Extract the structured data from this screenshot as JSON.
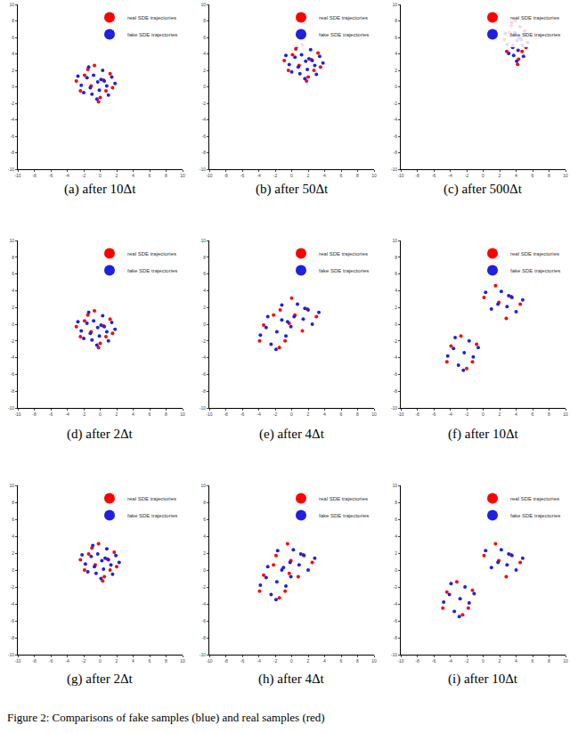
{
  "caption": "Figure 2: Comparisons of fake samples (blue) and real samples (red)",
  "chart_data": [
    {
      "type": "scatter",
      "title": "(a) after 10Δt",
      "xlim": [
        -10,
        10
      ],
      "ylim": [
        -10,
        10
      ],
      "xticks": [
        -10,
        -8,
        -6,
        -4,
        -2,
        0,
        2,
        4,
        6,
        8,
        10
      ],
      "yticks": [
        -10,
        -8,
        -6,
        -4,
        -2,
        0,
        2,
        4,
        6,
        8,
        10
      ],
      "legend": "top right",
      "series": [
        {
          "name": "real SDE trajectories",
          "color": "#ff0000",
          "x": [
            0.0,
            -1.9,
            1.2,
            -0.7,
            0.7,
            -2.4,
            0.4,
            -1.1,
            1.5,
            -1.5,
            -0.2,
            -2.9
          ],
          "y": [
            -1.3,
            1.4,
            1.6,
            2.6,
            -0.5,
            -0.5,
            0.8,
            0.1,
            -0.1,
            2.1,
            -1.8,
            0.7
          ]
        },
        {
          "name": "fake SDE trajectories",
          "color": "#2020e0",
          "x": [
            -0.3,
            -1.6,
            0.8,
            -1.0,
            0.3,
            -2.3,
            1.4,
            -0.4,
            -1.4,
            1.0,
            -2.0,
            0.1,
            -0.8,
            0.5,
            -1.2,
            -0.1,
            -2.7,
            1.8
          ],
          "y": [
            0.6,
            1.1,
            0.1,
            -0.9,
            2.0,
            0.2,
            1.2,
            -1.5,
            2.4,
            -1.0,
            -0.7,
            0.9,
            1.4,
            0.7,
            -0.1,
            -0.4,
            1.3,
            0.4
          ]
        }
      ]
    },
    {
      "type": "scatter",
      "title": "(b) after 50Δt",
      "xlim": [
        -10,
        10
      ],
      "ylim": [
        -10,
        10
      ],
      "xticks": [
        -10,
        -8,
        -6,
        -4,
        -2,
        0,
        2,
        4,
        6,
        8,
        10
      ],
      "yticks": [
        -10,
        -8,
        -6,
        -4,
        -2,
        0,
        2,
        4,
        6,
        8,
        10
      ],
      "legend": "top right",
      "series": [
        {
          "name": "real SDE trajectories",
          "color": "#ff0000",
          "x": [
            2.0,
            0.1,
            3.2,
            1.3,
            2.7,
            -0.4,
            2.4,
            0.9,
            3.5,
            0.5,
            1.8,
            -0.9
          ],
          "y": [
            1.2,
            3.9,
            4.1,
            5.1,
            2.0,
            2.0,
            3.3,
            2.6,
            2.4,
            4.6,
            0.7,
            3.2
          ]
        },
        {
          "name": "fake SDE trajectories",
          "color": "#2020e0",
          "x": [
            1.7,
            0.4,
            2.8,
            1.0,
            2.3,
            -0.3,
            3.4,
            1.6,
            0.6,
            3.0,
            0.0,
            2.1,
            1.2,
            2.5,
            0.8,
            1.9,
            -0.7,
            3.8
          ],
          "y": [
            3.1,
            3.6,
            2.6,
            1.6,
            4.5,
            2.7,
            3.7,
            1.0,
            4.9,
            1.5,
            1.8,
            3.4,
            3.9,
            3.2,
            2.4,
            2.1,
            3.8,
            2.9
          ]
        }
      ]
    },
    {
      "type": "scatter",
      "title": "(c) after 500Δt",
      "xlim": [
        -10,
        10
      ],
      "ylim": [
        -10,
        10
      ],
      "xticks": [
        -10,
        -8,
        -6,
        -4,
        -2,
        0,
        2,
        4,
        6,
        8,
        10
      ],
      "yticks": [
        -10,
        -8,
        -6,
        -4,
        -2,
        0,
        2,
        4,
        6,
        8,
        10
      ],
      "legend": "top right",
      "series": [
        {
          "name": "real SDE trajectories",
          "color": "#ff0000",
          "x": [
            4.3,
            3.16,
            5.02,
            3.88,
            4.72,
            2.86,
            4.54,
            3.64,
            5.2,
            3.4,
            4.18,
            2.56
          ],
          "y": [
            3.34,
            6.58,
            6.82,
            8.02,
            4.3,
            4.3,
            5.86,
            5.02,
            4.78,
            7.42,
            2.74,
            5.74
          ]
        },
        {
          "name": "fake SDE trajectories",
          "color": "#2020e0",
          "x": [
            4.12,
            3.34,
            4.78,
            3.7,
            4.48,
            2.92,
            5.14,
            4.06,
            3.46,
            4.9,
            3.1,
            4.36,
            3.82,
            4.6,
            3.58,
            4.24,
            2.68,
            5.38
          ],
          "y": [
            5.62,
            6.22,
            5.02,
            3.82,
            7.3,
            5.14,
            6.34,
            3.1,
            7.78,
            3.7,
            4.06,
            5.98,
            6.58,
            5.74,
            4.78,
            4.42,
            6.46,
            5.38
          ]
        }
      ]
    },
    {
      "type": "scatter",
      "title": "(d) after 2Δt",
      "xlim": [
        -10,
        10
      ],
      "ylim": [
        -10,
        10
      ],
      "xticks": [
        -10,
        -8,
        -6,
        -4,
        -2,
        0,
        2,
        4,
        6,
        8,
        10
      ],
      "yticks": [
        -10,
        -8,
        -6,
        -4,
        -2,
        0,
        2,
        4,
        6,
        8,
        10
      ],
      "legend": "top right",
      "series": [
        {
          "name": "real SDE trajectories",
          "color": "#ff0000",
          "x": [
            0.0,
            -1.9,
            1.2,
            -0.7,
            0.7,
            -2.4,
            0.4,
            -1.1,
            1.5,
            -1.5,
            -0.2,
            -2.9
          ],
          "y": [
            -2.3,
            0.4,
            0.6,
            1.6,
            -1.5,
            -1.5,
            -0.2,
            -0.9,
            -1.1,
            1.1,
            -2.8,
            -0.3
          ]
        },
        {
          "name": "fake SDE trajectories",
          "color": "#2020e0",
          "x": [
            -0.3,
            -1.6,
            0.8,
            -1.0,
            0.3,
            -2.3,
            1.4,
            -0.4,
            -1.4,
            1.0,
            -2.0,
            0.1,
            -0.8,
            0.5,
            -1.2,
            -0.1,
            -2.7,
            1.8
          ],
          "y": [
            -0.4,
            0.1,
            -0.9,
            -1.9,
            1.0,
            -0.8,
            0.2,
            -2.5,
            1.4,
            -2.0,
            -1.7,
            -0.1,
            0.4,
            -0.3,
            -1.1,
            -1.4,
            0.3,
            -0.6
          ]
        }
      ]
    },
    {
      "type": "scatter",
      "title": "(e) after 4Δt",
      "xlim": [
        -10,
        10
      ],
      "ylim": [
        -10,
        10
      ],
      "xticks": [
        -10,
        -8,
        -6,
        -4,
        -2,
        0,
        2,
        4,
        6,
        8,
        10
      ],
      "yticks": [
        -10,
        -8,
        -6,
        -4,
        -2,
        0,
        2,
        4,
        6,
        8,
        10
      ],
      "legend": "top right",
      "series": [
        {
          "name": "real SDE trajectories",
          "color": "#ff0000",
          "x": [
            -1.5,
            -3.4,
            -0.3,
            -2.2,
            -0.8,
            -3.9,
            1.9,
            0.4,
            3.0,
            0.0,
            1.3,
            -1.4
          ],
          "y": [
            -2.8,
            -0.1,
            0.1,
            1.1,
            -2.0,
            -2.0,
            1.8,
            1.1,
            0.9,
            3.1,
            -0.8,
            1.7
          ]
        },
        {
          "name": "fake SDE trajectories",
          "color": "#2020e0",
          "x": [
            -1.8,
            -3.1,
            -0.7,
            -2.5,
            -1.2,
            -3.8,
            -0.1,
            -1.9,
            -2.9,
            2.5,
            -0.5,
            1.6,
            0.7,
            2.0,
            0.3,
            1.4,
            -1.2,
            3.3
          ],
          "y": [
            -0.9,
            -0.4,
            -1.4,
            -2.4,
            0.5,
            -1.3,
            -0.3,
            -3.0,
            0.9,
            0.0,
            0.3,
            1.9,
            2.4,
            1.7,
            0.9,
            0.6,
            2.3,
            1.4
          ]
        }
      ]
    },
    {
      "type": "scatter",
      "title": "(f) after 10Δt",
      "xlim": [
        -10,
        10
      ],
      "ylim": [
        -10,
        10
      ],
      "xticks": [
        -10,
        -8,
        -6,
        -4,
        -2,
        0,
        2,
        4,
        6,
        8,
        10
      ],
      "yticks": [
        -10,
        -8,
        -6,
        -4,
        -2,
        0,
        2,
        4,
        6,
        8,
        10
      ],
      "legend": "top right",
      "series": [
        {
          "name": "real SDE trajectories",
          "color": "#ff0000",
          "x": [
            -2.0,
            -3.9,
            -0.8,
            -2.7,
            -1.3,
            -4.4,
            3.4,
            1.9,
            4.5,
            1.5,
            2.8,
            0.1
          ],
          "y": [
            -5.3,
            -2.6,
            -2.4,
            -1.4,
            -4.5,
            -4.5,
            3.3,
            2.6,
            2.4,
            4.6,
            0.7,
            3.2
          ]
        },
        {
          "name": "fake SDE trajectories",
          "color": "#2020e0",
          "x": [
            -2.3,
            -3.6,
            -1.2,
            -3.0,
            -1.7,
            -4.3,
            -0.6,
            -2.4,
            -3.4,
            4.0,
            1.0,
            3.1,
            2.2,
            3.5,
            1.8,
            2.9,
            0.3,
            4.8
          ],
          "y": [
            -3.4,
            -2.9,
            -3.9,
            -4.9,
            -2.0,
            -3.8,
            -2.8,
            -5.5,
            -1.6,
            1.5,
            1.8,
            3.4,
            3.9,
            3.2,
            2.4,
            2.1,
            3.8,
            2.9
          ]
        }
      ]
    },
    {
      "type": "scatter",
      "title": "(g) after 2Δt",
      "xlim": [
        -10,
        10
      ],
      "ylim": [
        -10,
        10
      ],
      "xticks": [
        -10,
        -8,
        -6,
        -4,
        -2,
        0,
        2,
        4,
        6,
        8,
        10
      ],
      "yticks": [
        -10,
        -8,
        -6,
        -4,
        -2,
        0,
        2,
        4,
        6,
        8,
        10
      ],
      "legend": "top right",
      "series": [
        {
          "name": "real SDE trajectories",
          "color": "#ff0000",
          "x": [
            0.5,
            -1.4,
            1.7,
            -0.2,
            1.2,
            -1.9,
            0.9,
            -0.6,
            2.0,
            -1.0,
            0.3,
            -2.4
          ],
          "y": [
            -0.8,
            1.9,
            2.1,
            3.1,
            0.0,
            0.0,
            1.3,
            0.6,
            0.4,
            2.6,
            -1.3,
            1.2
          ]
        },
        {
          "name": "fake SDE trajectories",
          "color": "#2020e0",
          "x": [
            0.2,
            -1.1,
            1.3,
            -0.5,
            0.8,
            -1.8,
            1.9,
            0.1,
            -0.9,
            1.5,
            -1.5,
            0.6,
            -0.3,
            1.0,
            -0.7,
            0.4,
            -2.2,
            2.3
          ],
          "y": [
            1.1,
            1.6,
            0.6,
            -0.4,
            2.5,
            0.7,
            1.7,
            -1.0,
            2.9,
            -0.5,
            -0.2,
            1.4,
            1.9,
            1.2,
            0.4,
            0.1,
            1.8,
            0.9
          ]
        }
      ]
    },
    {
      "type": "scatter",
      "title": "(h) after 4Δt",
      "xlim": [
        -10,
        10
      ],
      "ylim": [
        -10,
        10
      ],
      "xticks": [
        -10,
        -8,
        -6,
        -4,
        -2,
        0,
        2,
        4,
        6,
        8,
        10
      ],
      "yticks": [
        -10,
        -8,
        -6,
        -4,
        -2,
        0,
        2,
        4,
        6,
        8,
        10
      ],
      "legend": "top right",
      "series": [
        {
          "name": "real SDE trajectories",
          "color": "#ff0000",
          "x": [
            -1.5,
            -3.4,
            -0.3,
            -2.2,
            -0.8,
            -3.9,
            1.4,
            -0.1,
            2.5,
            -0.5,
            0.8,
            -1.9
          ],
          "y": [
            -3.3,
            -0.6,
            -0.4,
            0.6,
            -2.5,
            -2.5,
            1.8,
            1.1,
            0.9,
            3.1,
            -0.8,
            1.7
          ]
        },
        {
          "name": "fake SDE trajectories",
          "color": "#2020e0",
          "x": [
            -1.8,
            -3.1,
            -0.7,
            -2.5,
            -1.2,
            -3.8,
            -0.1,
            -1.9,
            -2.9,
            2.0,
            -1.0,
            1.1,
            0.2,
            1.5,
            -0.2,
            0.9,
            -1.7,
            2.8
          ],
          "y": [
            -1.4,
            -0.9,
            -1.9,
            -2.9,
            0.0,
            -1.8,
            -0.8,
            -3.5,
            0.4,
            0.0,
            0.3,
            1.9,
            2.4,
            1.7,
            0.9,
            0.6,
            2.3,
            1.4
          ]
        }
      ]
    },
    {
      "type": "scatter",
      "title": "(i) after 10Δt",
      "xlim": [
        -10,
        10
      ],
      "ylim": [
        -10,
        10
      ],
      "xticks": [
        -10,
        -8,
        -6,
        -4,
        -2,
        0,
        2,
        4,
        6,
        8,
        10
      ],
      "yticks": [
        -10,
        -8,
        -6,
        -4,
        -2,
        0,
        2,
        4,
        6,
        8,
        10
      ],
      "legend": "top right",
      "series": [
        {
          "name": "real SDE trajectories",
          "color": "#ff0000",
          "x": [
            -2.5,
            -4.4,
            -1.3,
            -3.2,
            -1.8,
            -4.9,
            3.4,
            1.9,
            4.5,
            1.5,
            2.8,
            0.1
          ],
          "y": [
            -5.3,
            -2.6,
            -2.4,
            -1.4,
            -4.5,
            -4.5,
            1.8,
            1.1,
            0.9,
            3.1,
            -0.8,
            1.7
          ]
        },
        {
          "name": "fake SDE trajectories",
          "color": "#2020e0",
          "x": [
            -2.8,
            -4.1,
            -1.7,
            -3.5,
            -2.2,
            -4.8,
            -1.1,
            -2.9,
            -3.9,
            4.0,
            1.0,
            3.1,
            2.2,
            3.5,
            1.8,
            2.9,
            0.3,
            4.8
          ],
          "y": [
            -3.4,
            -2.9,
            -3.9,
            -4.9,
            -2.0,
            -3.8,
            -2.8,
            -5.5,
            -1.6,
            0.0,
            0.3,
            1.9,
            2.4,
            1.7,
            0.9,
            0.6,
            2.3,
            1.4
          ]
        }
      ]
    }
  ]
}
